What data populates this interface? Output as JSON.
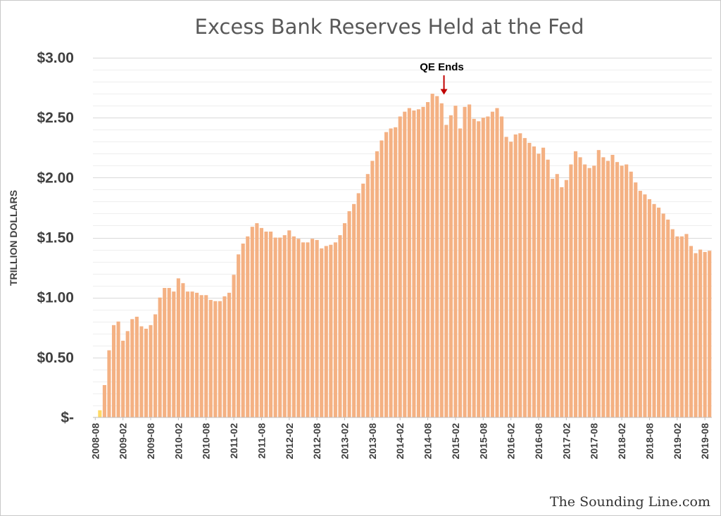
{
  "chart_data": {
    "type": "bar",
    "title": "Excess Bank Reserves Held at the Fed",
    "ylabel": "TRILLION DOLLARS",
    "xlabel": "",
    "ylim": [
      0,
      3.0
    ],
    "yticks": [
      {
        "value": 0,
        "label": "$-"
      },
      {
        "value": 0.5,
        "label": "$0.50"
      },
      {
        "value": 1.0,
        "label": "$1.00"
      },
      {
        "value": 1.5,
        "label": "$1.50"
      },
      {
        "value": 2.0,
        "label": "$2.00"
      },
      {
        "value": 2.5,
        "label": "$2.50"
      },
      {
        "value": 3.0,
        "label": "$3.00"
      }
    ],
    "xtick_labels": [
      "2008-08",
      "2009-02",
      "2009-08",
      "2010-02",
      "2010-08",
      "2011-02",
      "2011-08",
      "2012-02",
      "2012-08",
      "2013-02",
      "2013-08",
      "2014-02",
      "2014-08",
      "2015-02",
      "2015-08",
      "2016-02",
      "2016-08",
      "2017-02",
      "2017-08",
      "2018-02",
      "2018-08",
      "2019-02",
      "2019-08"
    ],
    "start_month": "2008-08",
    "minor_grid": true,
    "bar_color": "#f4b183",
    "highlight_color": "#ffd966",
    "highlight_indices": [
      0,
      1
    ],
    "values": [
      0.002,
      0.06,
      0.27,
      0.56,
      0.77,
      0.8,
      0.64,
      0.72,
      0.82,
      0.84,
      0.76,
      0.74,
      0.77,
      0.86,
      1.0,
      1.08,
      1.08,
      1.05,
      1.16,
      1.12,
      1.05,
      1.05,
      1.04,
      1.02,
      1.02,
      0.98,
      0.97,
      0.97,
      1.01,
      1.04,
      1.19,
      1.36,
      1.45,
      1.51,
      1.59,
      1.62,
      1.58,
      1.55,
      1.55,
      1.5,
      1.5,
      1.52,
      1.56,
      1.51,
      1.49,
      1.46,
      1.46,
      1.49,
      1.48,
      1.41,
      1.43,
      1.44,
      1.46,
      1.52,
      1.62,
      1.72,
      1.78,
      1.87,
      1.95,
      2.03,
      2.14,
      2.22,
      2.31,
      2.38,
      2.41,
      2.42,
      2.51,
      2.55,
      2.58,
      2.56,
      2.57,
      2.59,
      2.63,
      2.7,
      2.68,
      2.62,
      2.44,
      2.52,
      2.6,
      2.41,
      2.59,
      2.61,
      2.49,
      2.47,
      2.5,
      2.51,
      2.55,
      2.58,
      2.51,
      2.34,
      2.3,
      2.36,
      2.37,
      2.33,
      2.29,
      2.26,
      2.2,
      2.25,
      2.15,
      1.99,
      2.03,
      1.92,
      1.98,
      2.11,
      2.22,
      2.17,
      2.11,
      2.08,
      2.1,
      2.23,
      2.17,
      2.14,
      2.19,
      2.13,
      2.1,
      2.11,
      2.05,
      1.96,
      1.89,
      1.86,
      1.82,
      1.78,
      1.75,
      1.7,
      1.65,
      1.57,
      1.51,
      1.51,
      1.53,
      1.43,
      1.37,
      1.4,
      1.38,
      1.39
    ],
    "annotations": [
      {
        "text": "QE Ends",
        "index": 74,
        "type": "arrow-down",
        "color": "#c00000"
      }
    ]
  },
  "credit": "The Sounding Line.com"
}
